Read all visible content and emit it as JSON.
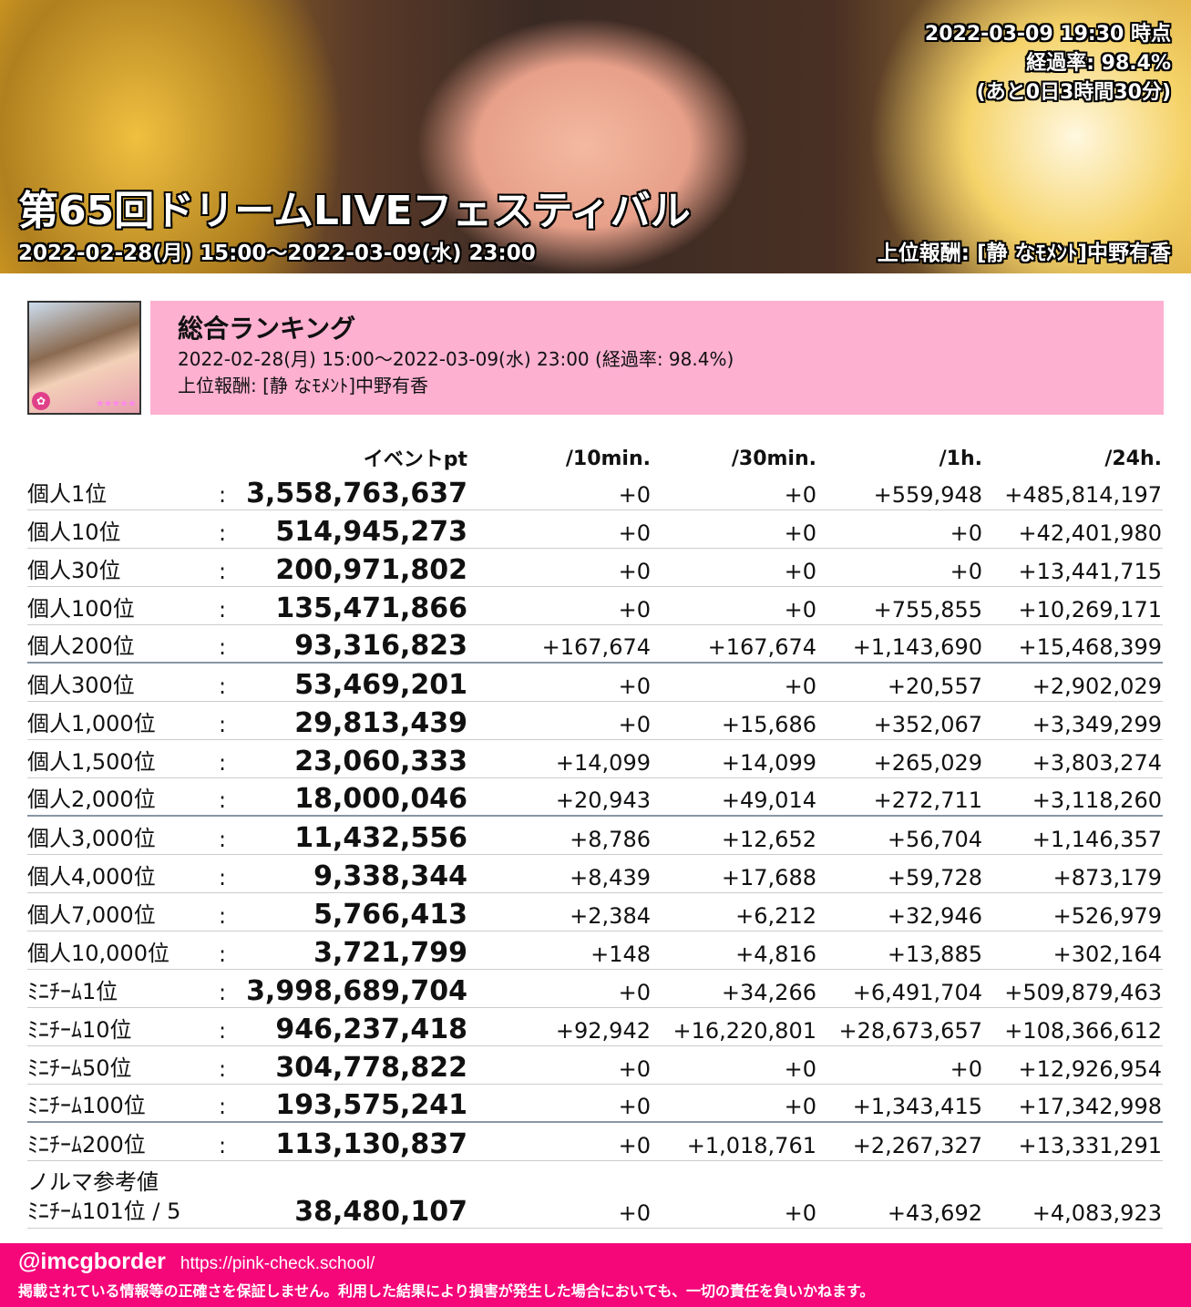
{
  "banner": {
    "timestamp": "2022-03-09 19:30 時点",
    "progress": "経過率: 98.4%",
    "remaining": "(あと0日3時間30分)",
    "title": "第65回ドリームLIVEフェスティバル",
    "period": "2022-02-28(月) 15:00〜2022-03-09(水) 23:00",
    "reward": "上位報酬: [静 なﾓﾒﾝﾄ]中野有香"
  },
  "card": {
    "stars": "★★★★★",
    "badge": "✿"
  },
  "ranking": {
    "heading": "総合ランキング",
    "period": "2022-02-28(月) 15:00〜2022-03-09(水) 23:00 (経過率: 98.4%)",
    "reward": "上位報酬: [静 なﾓﾒﾝﾄ]中野有香"
  },
  "table": {
    "headers": [
      "イベントpt",
      "/10min.",
      "/30min.",
      "/1h.",
      "/24h."
    ],
    "colon": ":",
    "rows": [
      {
        "label": "個人1位",
        "pt": "3,558,763,637",
        "d10": "+0",
        "d30": "+0",
        "d1h": "+559,948",
        "d24": "+485,814,197"
      },
      {
        "label": "個人10位",
        "pt": "514,945,273",
        "d10": "+0",
        "d30": "+0",
        "d1h": "+0",
        "d24": "+42,401,980"
      },
      {
        "label": "個人30位",
        "pt": "200,971,802",
        "d10": "+0",
        "d30": "+0",
        "d1h": "+0",
        "d24": "+13,441,715"
      },
      {
        "label": "個人100位",
        "pt": "135,471,866",
        "d10": "+0",
        "d30": "+0",
        "d1h": "+755,855",
        "d24": "+10,269,171"
      },
      {
        "label": "個人200位",
        "pt": "93,316,823",
        "d10": "+167,674",
        "d30": "+167,674",
        "d1h": "+1,143,690",
        "d24": "+15,468,399"
      },
      {
        "label": "個人300位",
        "pt": "53,469,201",
        "d10": "+0",
        "d30": "+0",
        "d1h": "+20,557",
        "d24": "+2,902,029"
      },
      {
        "label": "個人1,000位",
        "pt": "29,813,439",
        "d10": "+0",
        "d30": "+15,686",
        "d1h": "+352,067",
        "d24": "+3,349,299"
      },
      {
        "label": "個人1,500位",
        "pt": "23,060,333",
        "d10": "+14,099",
        "d30": "+14,099",
        "d1h": "+265,029",
        "d24": "+3,803,274"
      },
      {
        "label": "個人2,000位",
        "pt": "18,000,046",
        "d10": "+20,943",
        "d30": "+49,014",
        "d1h": "+272,711",
        "d24": "+3,118,260"
      },
      {
        "label": "個人3,000位",
        "pt": "11,432,556",
        "d10": "+8,786",
        "d30": "+12,652",
        "d1h": "+56,704",
        "d24": "+1,146,357"
      },
      {
        "label": "個人4,000位",
        "pt": "9,338,344",
        "d10": "+8,439",
        "d30": "+17,688",
        "d1h": "+59,728",
        "d24": "+873,179"
      },
      {
        "label": "個人7,000位",
        "pt": "5,766,413",
        "d10": "+2,384",
        "d30": "+6,212",
        "d1h": "+32,946",
        "d24": "+526,979"
      },
      {
        "label": "個人10,000位",
        "pt": "3,721,799",
        "d10": "+148",
        "d30": "+4,816",
        "d1h": "+13,885",
        "d24": "+302,164"
      },
      {
        "label": "ﾐﾆﾁｰﾑ1位",
        "pt": "3,998,689,704",
        "d10": "+0",
        "d30": "+34,266",
        "d1h": "+6,491,704",
        "d24": "+509,879,463"
      },
      {
        "label": "ﾐﾆﾁｰﾑ10位",
        "pt": "946,237,418",
        "d10": "+92,942",
        "d30": "+16,220,801",
        "d1h": "+28,673,657",
        "d24": "+108,366,612"
      },
      {
        "label": "ﾐﾆﾁｰﾑ50位",
        "pt": "304,778,822",
        "d10": "+0",
        "d30": "+0",
        "d1h": "+0",
        "d24": "+12,926,954"
      },
      {
        "label": "ﾐﾆﾁｰﾑ100位",
        "pt": "193,575,241",
        "d10": "+0",
        "d30": "+0",
        "d1h": "+1,343,415",
        "d24": "+17,342,998"
      },
      {
        "label": "ﾐﾆﾁｰﾑ200位",
        "pt": "113,130,837",
        "d10": "+0",
        "d30": "+1,018,761",
        "d1h": "+2,267,327",
        "d24": "+13,331,291"
      }
    ],
    "norma": {
      "label1": "ノルマ参考値",
      "label2": "ﾐﾆﾁｰﾑ101位 / 5",
      "pt": "38,480,107",
      "d10": "+0",
      "d30": "+0",
      "d1h": "+43,692",
      "d24": "+4,083,923"
    }
  },
  "footer": {
    "account": "@imcgborder",
    "url": "https://pink-check.school/",
    "disclaimer": "掲載されている情報等の正確さを保証しません。利用した結果により損害が発生した場合においても、一切の責任を負いかねます。"
  }
}
